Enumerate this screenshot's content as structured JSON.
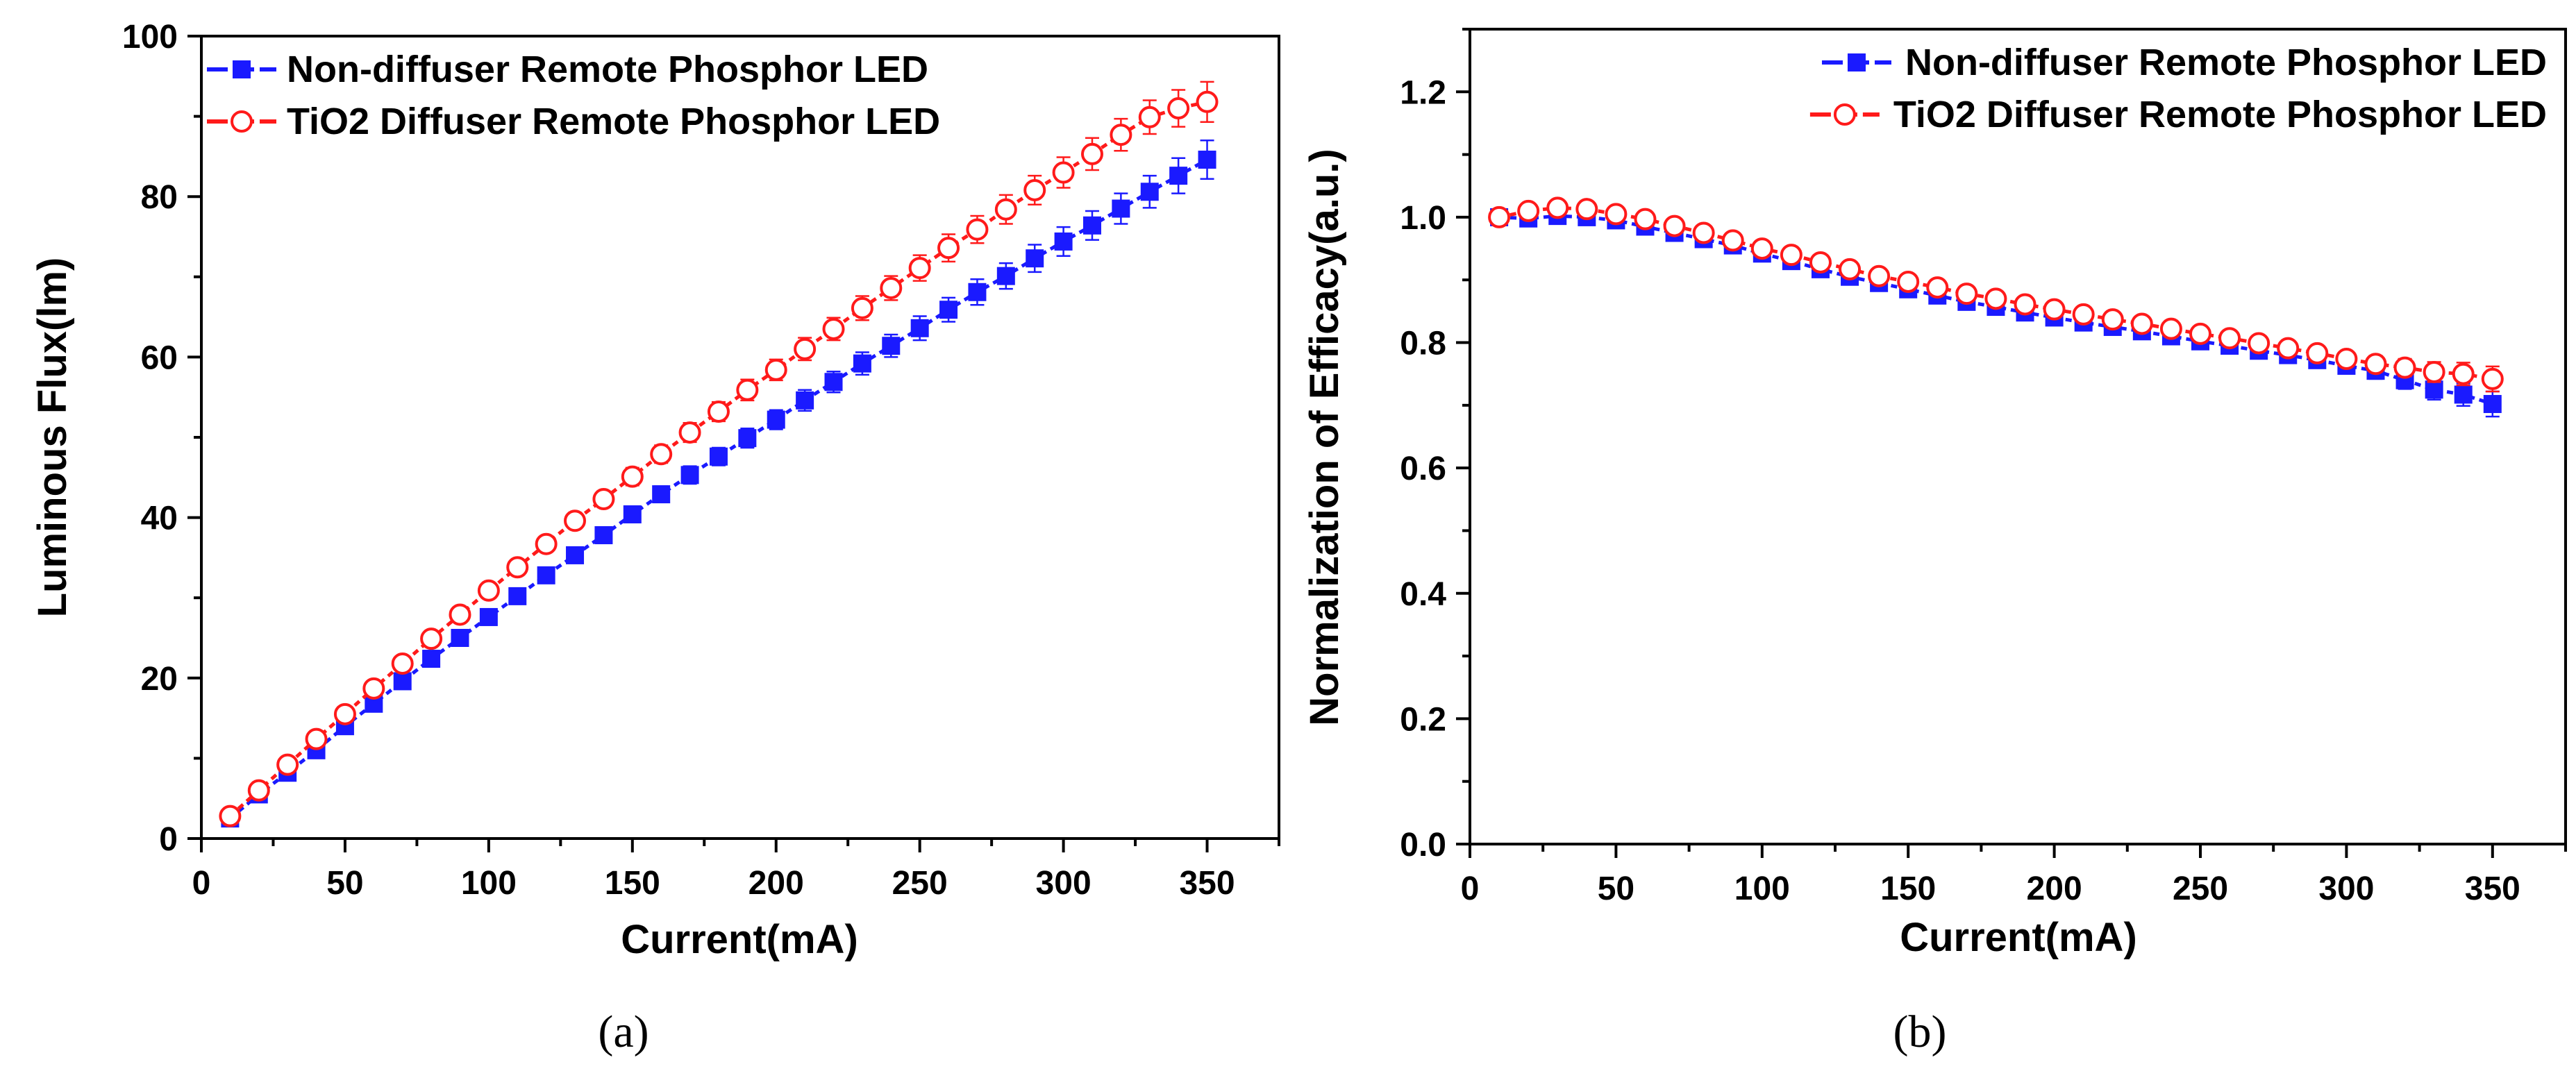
{
  "chart_data": [
    {
      "type": "line",
      "panel_label": "(a)",
      "xlabel": "Current(mA)",
      "ylabel": "Luminous Flux(lm)",
      "xlim": [
        0,
        375
      ],
      "ylim": [
        0,
        100
      ],
      "xticks": [
        0,
        50,
        100,
        150,
        200,
        250,
        300,
        350
      ],
      "yticks": [
        0,
        20,
        40,
        60,
        80,
        100
      ],
      "x": [
        10,
        20,
        30,
        40,
        50,
        60,
        70,
        80,
        90,
        100,
        110,
        120,
        130,
        140,
        150,
        160,
        170,
        180,
        190,
        200,
        210,
        220,
        230,
        240,
        250,
        260,
        270,
        280,
        290,
        300,
        310,
        320,
        330,
        340,
        350
      ],
      "legend_position": "top-left",
      "series": [
        {
          "name": "Non-diffuser Remote Phosphor LED",
          "color": "#1a1aff",
          "marker": "filled-square",
          "values": [
            2.5,
            5.5,
            8.2,
            11.0,
            14.0,
            16.8,
            19.6,
            22.4,
            25.0,
            27.6,
            30.2,
            32.8,
            35.3,
            37.8,
            40.4,
            42.9,
            45.3,
            47.6,
            49.9,
            52.2,
            54.6,
            56.9,
            59.2,
            61.4,
            63.6,
            65.9,
            68.1,
            70.1,
            72.3,
            74.4,
            76.4,
            78.5,
            80.6,
            82.6,
            84.6
          ],
          "errors": [
            0.5,
            0.5,
            0.6,
            0.6,
            0.6,
            0.7,
            0.7,
            0.8,
            0.8,
            0.8,
            0.9,
            0.9,
            0.9,
            1.0,
            1.0,
            1.0,
            1.1,
            1.1,
            1.2,
            1.2,
            1.3,
            1.3,
            1.4,
            1.4,
            1.5,
            1.5,
            1.6,
            1.6,
            1.7,
            1.8,
            1.8,
            1.9,
            2.0,
            2.2,
            2.4
          ]
        },
        {
          "name": "TiO2 Diffuser Remote Phosphor LED",
          "color": "#ff1a1a",
          "marker": "open-circle",
          "values": [
            2.8,
            6.0,
            9.2,
            12.4,
            15.5,
            18.7,
            21.8,
            24.9,
            27.9,
            30.9,
            33.8,
            36.7,
            39.6,
            42.3,
            45.1,
            47.9,
            50.6,
            53.2,
            55.9,
            58.4,
            61.0,
            63.5,
            66.1,
            68.6,
            71.1,
            73.6,
            75.9,
            78.4,
            80.8,
            83.0,
            85.3,
            87.7,
            89.9,
            91.0,
            91.8
          ],
          "errors": [
            0.5,
            0.5,
            0.6,
            0.6,
            0.7,
            0.7,
            0.7,
            0.8,
            0.8,
            0.9,
            0.9,
            0.9,
            1.0,
            1.0,
            1.1,
            1.1,
            1.2,
            1.2,
            1.3,
            1.3,
            1.4,
            1.4,
            1.5,
            1.5,
            1.6,
            1.7,
            1.7,
            1.8,
            1.8,
            1.9,
            2.0,
            2.0,
            2.1,
            2.3,
            2.5
          ]
        }
      ]
    },
    {
      "type": "line",
      "panel_label": "(b)",
      "xlabel": "Current(mA)",
      "ylabel": "Normalization of  Efficacy(a.u.)",
      "xlim": [
        0,
        375
      ],
      "ylim": [
        0,
        1.3
      ],
      "xticks": [
        0,
        50,
        100,
        150,
        200,
        250,
        300,
        350
      ],
      "yticks": [
        "0.0",
        "0.2",
        "0.4",
        "0.6",
        "0.8",
        "1.0",
        "1.2"
      ],
      "x": [
        10,
        20,
        30,
        40,
        50,
        60,
        70,
        80,
        90,
        100,
        110,
        120,
        130,
        140,
        150,
        160,
        170,
        180,
        190,
        200,
        210,
        220,
        230,
        240,
        250,
        260,
        270,
        280,
        290,
        300,
        310,
        320,
        330,
        340,
        350
      ],
      "legend_position": "top-right",
      "series": [
        {
          "name": "Non-diffuser Remote Phosphor LED",
          "color": "#1a1aff",
          "marker": "filled-square",
          "values": [
            1.0,
            0.998,
            1.002,
            1.0,
            0.995,
            0.985,
            0.975,
            0.965,
            0.955,
            0.942,
            0.93,
            0.917,
            0.905,
            0.895,
            0.885,
            0.875,
            0.865,
            0.857,
            0.848,
            0.84,
            0.832,
            0.825,
            0.818,
            0.81,
            0.802,
            0.795,
            0.787,
            0.78,
            0.772,
            0.763,
            0.755,
            0.74,
            0.725,
            0.717,
            0.702
          ],
          "errors": [
            0.008,
            0.008,
            0.008,
            0.008,
            0.008,
            0.008,
            0.008,
            0.008,
            0.008,
            0.008,
            0.008,
            0.008,
            0.008,
            0.008,
            0.008,
            0.008,
            0.009,
            0.009,
            0.009,
            0.009,
            0.009,
            0.009,
            0.01,
            0.01,
            0.01,
            0.01,
            0.011,
            0.011,
            0.012,
            0.012,
            0.013,
            0.014,
            0.016,
            0.018,
            0.02
          ]
        },
        {
          "name": "TiO2 Diffuser Remote Phosphor LED",
          "color": "#ff1a1a",
          "marker": "open-circle",
          "values": [
            1.0,
            1.01,
            1.015,
            1.013,
            1.005,
            0.997,
            0.986,
            0.975,
            0.963,
            0.95,
            0.94,
            0.928,
            0.917,
            0.906,
            0.897,
            0.888,
            0.878,
            0.87,
            0.861,
            0.853,
            0.845,
            0.837,
            0.83,
            0.822,
            0.814,
            0.807,
            0.799,
            0.791,
            0.783,
            0.774,
            0.766,
            0.76,
            0.753,
            0.75,
            0.742
          ],
          "errors": [
            0.008,
            0.008,
            0.008,
            0.008,
            0.008,
            0.008,
            0.008,
            0.008,
            0.008,
            0.008,
            0.008,
            0.008,
            0.008,
            0.008,
            0.008,
            0.008,
            0.009,
            0.009,
            0.009,
            0.009,
            0.009,
            0.009,
            0.01,
            0.01,
            0.01,
            0.01,
            0.011,
            0.011,
            0.012,
            0.012,
            0.013,
            0.014,
            0.016,
            0.018,
            0.02
          ]
        }
      ]
    }
  ]
}
